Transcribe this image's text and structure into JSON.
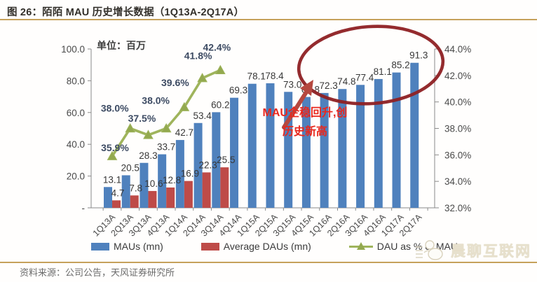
{
  "figure": {
    "title": "图 26：陌陌 MAU 历史增长数据（1Q13A-2Q17A）",
    "unit_label": "单位：百万",
    "source": "资料来源：公司公告，天风证券研究所",
    "watermark": "晨聊互联网"
  },
  "annotation": {
    "line1": "MAU企稳回升,创",
    "line2": "历史新高"
  },
  "legend": [
    {
      "label": "MAUs (mn)",
      "color": "#4f81bd"
    },
    {
      "label": "Average DAUs (mn)",
      "color": "#be4b48"
    },
    {
      "label": "DAU as % of MAUs",
      "color": "#9fb45c"
    }
  ],
  "chart_data": {
    "type": "bar",
    "title": "陌陌 MAU 历史增长数据 (1Q13A-2Q17A)",
    "categories": [
      "1Q13A",
      "2Q13A",
      "3Q13A",
      "4Q13A",
      "1Q14A",
      "2Q14A",
      "3Q14A",
      "4Q14A",
      "1Q15A",
      "2Q15A",
      "3Q15A",
      "4Q15A",
      "1Q16A",
      "2Q16A",
      "3Q16A",
      "4Q16A",
      "1Q17A",
      "2Q17A"
    ],
    "series": [
      {
        "name": "MAUs (mn)",
        "type": "bar",
        "axis": "left",
        "color": "#4f81bd",
        "values": [
          13.1,
          20.5,
          28.3,
          33.7,
          42.7,
          53.4,
          60.2,
          69.3,
          78.1,
          78.4,
          73.0,
          69.8,
          72.3,
          74.8,
          77.4,
          81.1,
          85.2,
          91.3
        ]
      },
      {
        "name": "Average DAUs (mn)",
        "type": "bar",
        "axis": "left",
        "color": "#be4b48",
        "values": [
          4.7,
          7.8,
          10.6,
          12.8,
          16.9,
          22.3,
          25.5,
          null,
          null,
          null,
          null,
          null,
          null,
          null,
          null,
          null,
          null,
          null
        ]
      },
      {
        "name": "DAU as % of MAUs",
        "type": "line",
        "axis": "right",
        "color": "#9fb45c",
        "values": [
          35.9,
          38.0,
          37.5,
          38.0,
          39.6,
          41.8,
          42.4,
          null,
          null,
          null,
          null,
          null,
          null,
          null,
          null,
          null,
          null,
          null
        ]
      }
    ],
    "left_axis": {
      "min": 0,
      "max": 100,
      "tick_labels": [
        "100.0",
        "80.0",
        "60.0",
        "40.0",
        "20.0",
        "-"
      ]
    },
    "right_axis": {
      "min": 32,
      "max": 44,
      "tick_labels": [
        "44.0%",
        "42.0%",
        "40.0%",
        "38.0%",
        "36.0%",
        "34.0%",
        "32.0%"
      ]
    },
    "grid": false,
    "legend_position": "bottom"
  }
}
